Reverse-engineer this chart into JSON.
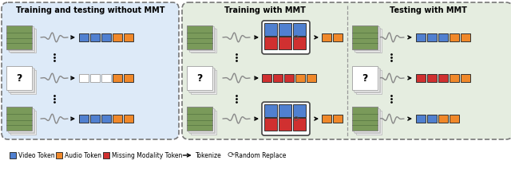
{
  "fig_width": 6.4,
  "fig_height": 2.16,
  "dpi": 100,
  "panel1_bg": "#ddeaf8",
  "panel23_bg": "#e5ede0",
  "blue": "#5080D0",
  "orange": "#F0882A",
  "red": "#D03030",
  "white": "#ffffff",
  "gray_wave": "#909090",
  "panel1_title": "Training and testing without MMT",
  "panel2_title": "Training with MMT",
  "panel3_title": "Testing with MMT",
  "legend_blue": "Video Token",
  "legend_orange": "Audio Token",
  "legend_red": "Missing Modality Token",
  "legend_arrow": "Tokenize",
  "legend_replace": "Random Replace"
}
